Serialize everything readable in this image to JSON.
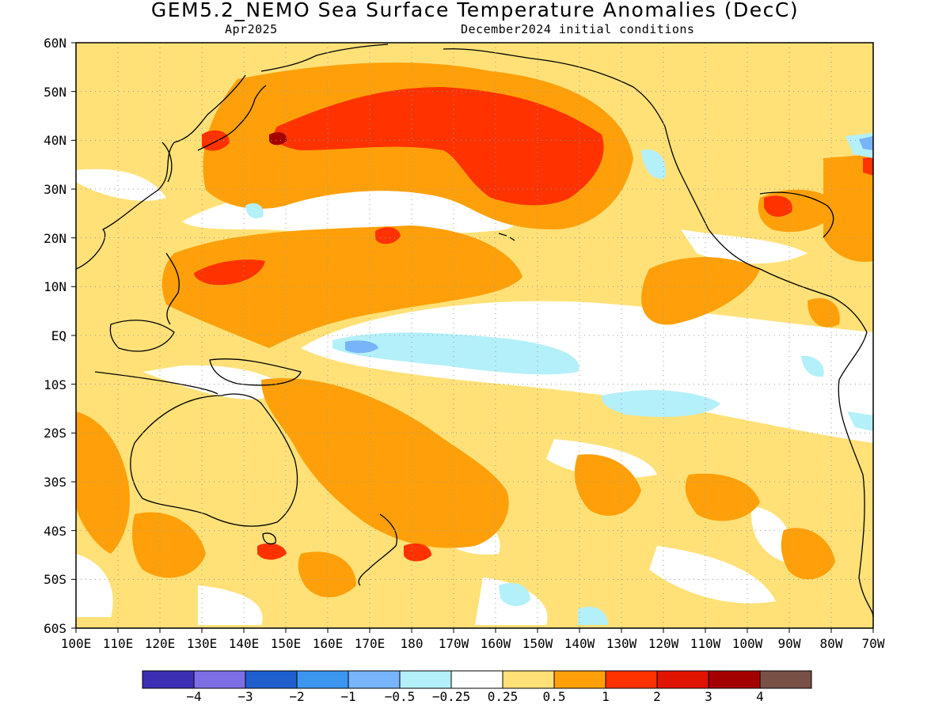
{
  "title": "GEM5.2_NEMO Sea Surface Temperature Anomalies (DecC)",
  "subtitle_left": "Apr2025",
  "subtitle_right": "December2024 initial conditions",
  "lat_labels": [
    "60N",
    "50N",
    "40N",
    "30N",
    "20N",
    "10N",
    "EQ",
    "10S",
    "20S",
    "30S",
    "40S",
    "50S",
    "60S"
  ],
  "lon_labels": [
    "100E",
    "110E",
    "120E",
    "130E",
    "140E",
    "150E",
    "160E",
    "170E",
    "180",
    "170W",
    "160W",
    "150W",
    "140W",
    "130W",
    "120W",
    "110W",
    "100W",
    "90W",
    "80W",
    "70W"
  ],
  "colorbar": {
    "colors": [
      "#3c2fb4",
      "#7d6ee6",
      "#1e5fcd",
      "#3c96f0",
      "#78b4fa",
      "#b4f0fa",
      "#ffffff",
      "#ffe178",
      "#ffa00a",
      "#ff3200",
      "#e11400",
      "#a50000",
      "#785046"
    ],
    "labels": [
      "−4",
      "−3",
      "−2",
      "−1",
      "−0.5",
      "−0.25",
      "0.25",
      "0.5",
      "1",
      "2",
      "3",
      "4"
    ]
  },
  "map_colors": {
    "land": "#ffffff",
    "ocean_base": "#ffe178",
    "positive": "#ffa00a",
    "strong_positive": "#ff3200",
    "very_strong_positive": "#e11400",
    "extreme_positive": "#a50000",
    "neutral": "#ffffff",
    "weak_negative": "#b4f0fa",
    "negative": "#78b4fa",
    "strong_negative": "#3c96f0",
    "very_strong_negative": "#1e5fcd",
    "coastline": "#000000",
    "grid": "#999999"
  }
}
